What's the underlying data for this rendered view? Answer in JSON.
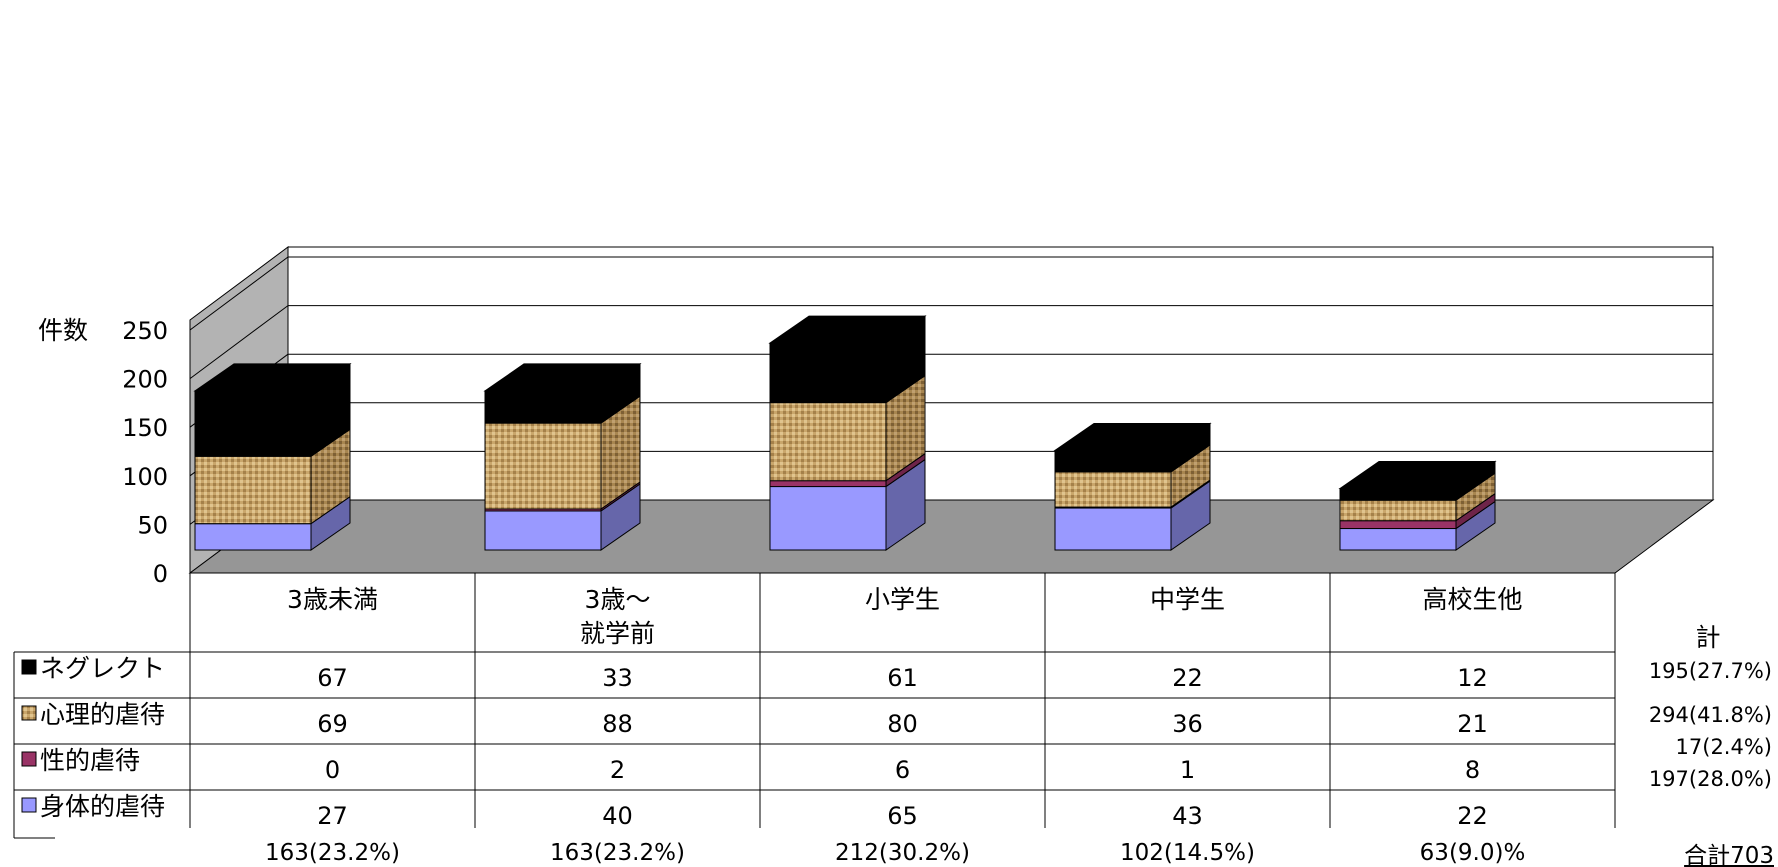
{
  "chart_data": {
    "type": "bar",
    "stacked": true,
    "three_d": true,
    "ylabel": "件数",
    "ylim": [
      0,
      250
    ],
    "yticks": [
      "0",
      "50",
      "100",
      "150",
      "200",
      "250"
    ],
    "grid": true,
    "categories": [
      [
        "3歳未満"
      ],
      [
        "3歳～",
        "就学前"
      ],
      [
        "小学生"
      ],
      [
        "中学生"
      ],
      [
        "高校生他"
      ]
    ],
    "series": [
      {
        "name": "身体的虐待",
        "values": [
          27,
          40,
          65,
          43,
          22
        ],
        "color": "#9999ff",
        "side_color": "#6666aa"
      },
      {
        "name": "性的虐待",
        "values": [
          0,
          2,
          6,
          1,
          8
        ],
        "color": "#993366",
        "side_color": "#6e2449"
      },
      {
        "name": "心理的虐待",
        "values": [
          69,
          88,
          80,
          36,
          21
        ],
        "color": "#c7a56a",
        "side_color": "#a88650",
        "pattern": "burlap"
      },
      {
        "name": "ネグレクト",
        "values": [
          67,
          33,
          61,
          22,
          12
        ],
        "color": "#000000",
        "side_color": "#000000"
      }
    ],
    "table_rows": [
      "ネグレクト",
      "心理的虐待",
      "性的虐待",
      "身体的虐待"
    ],
    "column_totals": [
      "163(23.2%)",
      "163(23.2%)",
      "212(30.2%)",
      "102(14.5%)",
      "63(9.0)%"
    ],
    "row_totals_header": "計",
    "row_totals": [
      "195(27.7%)",
      "294(41.8%)",
      "17(2.4%)",
      "197(28.0%)"
    ],
    "grand_total": "合計703"
  }
}
